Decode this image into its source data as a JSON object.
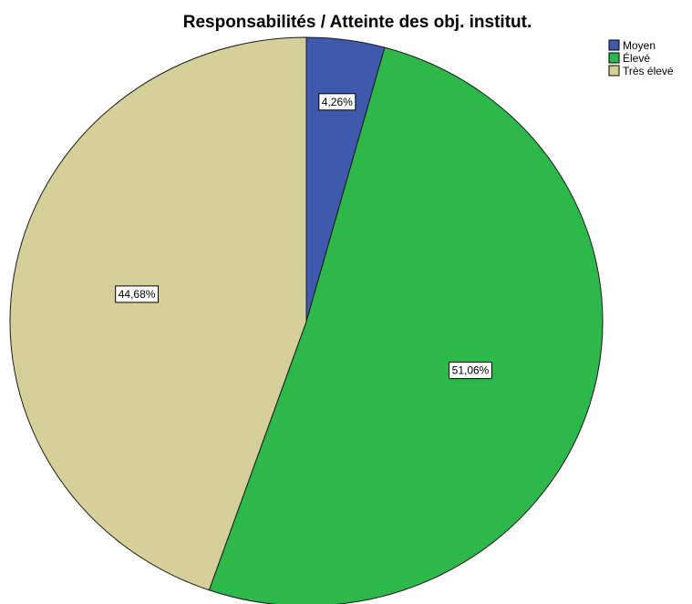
{
  "chart_data": {
    "type": "pie",
    "title": "Responsabilités / Atteinte des obj. institut.",
    "categories": [
      "Moyen",
      "Élevé",
      "Très élevé"
    ],
    "values": [
      4.26,
      51.06,
      44.68
    ],
    "data_labels": [
      "4,26%",
      "51,06%",
      "44,68%"
    ],
    "colors": [
      "#3e58ac",
      "#2eb84b",
      "#d5cf9a"
    ],
    "start_angle": "12 o'clock",
    "direction": "clockwise",
    "legend_position": "top-right"
  }
}
